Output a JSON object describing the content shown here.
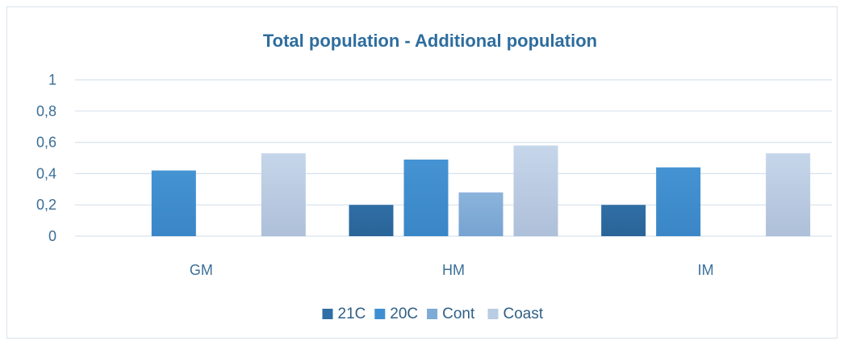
{
  "chart_data": {
    "type": "bar",
    "title": "Total population - Additional population",
    "xlabel": "",
    "ylabel": "",
    "categories": [
      "GM",
      "HM",
      "IM"
    ],
    "ylim": [
      0,
      1
    ],
    "yticks": [
      "0",
      "0,2",
      "0,4",
      "0,6",
      "0,8",
      "1"
    ],
    "ytick_values": [
      0,
      0.2,
      0.4,
      0.6,
      0.8,
      1
    ],
    "grid": true,
    "legend_position": "bottom",
    "series": [
      {
        "name": "21C",
        "color": "#2f6fa5",
        "values": [
          0,
          0.2,
          0.2
        ]
      },
      {
        "name": "20C",
        "color": "#3f8fd0",
        "values": [
          0.42,
          0.49,
          0.44
        ]
      },
      {
        "name": "Cont",
        "color": "#7eaad6",
        "values": [
          0,
          0.28,
          0
        ]
      },
      {
        "name": "Coast",
        "color": "#b8cce2",
        "values": [
          0.53,
          0.58,
          0.53
        ]
      }
    ]
  }
}
